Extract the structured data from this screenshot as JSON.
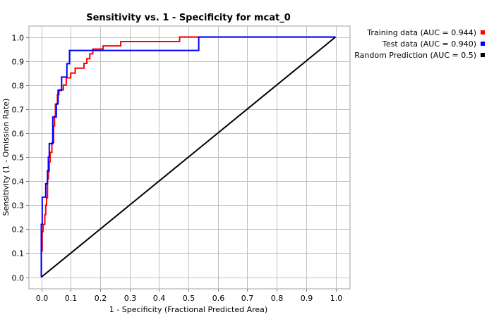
{
  "chart_data": {
    "type": "line",
    "title": "Sensitivity vs. 1 - Specificity for mcat_0",
    "xlabel": "1 - Specificity  (Fractional Predicted Area)",
    "ylabel": "Sensitivity  (1 - Omission Rate)",
    "xlim": [
      0,
      1.0
    ],
    "ylim": [
      0,
      1.0
    ],
    "grid": true,
    "legend_position": "outside-top-right",
    "x_ticks": [
      "0.0",
      "0.1",
      "0.2",
      "0.3",
      "0.4",
      "0.5",
      "0.6",
      "0.7",
      "0.8",
      "0.9",
      "1.0"
    ],
    "y_ticks": [
      "0.0",
      "0.1",
      "0.2",
      "0.3",
      "0.4",
      "0.5",
      "0.6",
      "0.7",
      "0.8",
      "0.9",
      "1.0"
    ],
    "series": [
      {
        "name": "Training data (AUC = 0.944)",
        "color": "#ff0000",
        "points": [
          [
            0.0,
            0.0
          ],
          [
            0.0,
            0.11
          ],
          [
            0.003,
            0.11
          ],
          [
            0.003,
            0.19
          ],
          [
            0.006,
            0.19
          ],
          [
            0.006,
            0.22
          ],
          [
            0.012,
            0.22
          ],
          [
            0.012,
            0.26
          ],
          [
            0.015,
            0.26
          ],
          [
            0.015,
            0.3
          ],
          [
            0.018,
            0.3
          ],
          [
            0.018,
            0.33
          ],
          [
            0.021,
            0.33
          ],
          [
            0.021,
            0.41
          ],
          [
            0.024,
            0.41
          ],
          [
            0.024,
            0.44
          ],
          [
            0.027,
            0.44
          ],
          [
            0.027,
            0.48
          ],
          [
            0.03,
            0.48
          ],
          [
            0.03,
            0.52
          ],
          [
            0.036,
            0.52
          ],
          [
            0.036,
            0.56
          ],
          [
            0.042,
            0.56
          ],
          [
            0.042,
            0.63
          ],
          [
            0.045,
            0.63
          ],
          [
            0.045,
            0.67
          ],
          [
            0.048,
            0.67
          ],
          [
            0.048,
            0.72
          ],
          [
            0.055,
            0.72
          ],
          [
            0.055,
            0.76
          ],
          [
            0.06,
            0.76
          ],
          [
            0.06,
            0.78
          ],
          [
            0.075,
            0.78
          ],
          [
            0.075,
            0.8
          ],
          [
            0.085,
            0.8
          ],
          [
            0.085,
            0.83
          ],
          [
            0.1,
            0.83
          ],
          [
            0.1,
            0.85
          ],
          [
            0.115,
            0.85
          ],
          [
            0.115,
            0.87
          ],
          [
            0.145,
            0.87
          ],
          [
            0.145,
            0.89
          ],
          [
            0.155,
            0.89
          ],
          [
            0.155,
            0.91
          ],
          [
            0.165,
            0.91
          ],
          [
            0.165,
            0.93
          ],
          [
            0.175,
            0.93
          ],
          [
            0.175,
            0.95
          ],
          [
            0.21,
            0.95
          ],
          [
            0.21,
            0.963
          ],
          [
            0.27,
            0.963
          ],
          [
            0.27,
            0.981
          ],
          [
            0.47,
            0.981
          ],
          [
            0.47,
            1.0
          ],
          [
            1.0,
            1.0
          ]
        ]
      },
      {
        "name": "Test data (AUC = 0.940)",
        "color": "#0000ff",
        "points": [
          [
            0.0,
            0.0
          ],
          [
            0.0,
            0.22
          ],
          [
            0.003,
            0.22
          ],
          [
            0.003,
            0.333
          ],
          [
            0.015,
            0.333
          ],
          [
            0.015,
            0.389
          ],
          [
            0.021,
            0.389
          ],
          [
            0.021,
            0.444
          ],
          [
            0.024,
            0.444
          ],
          [
            0.024,
            0.5
          ],
          [
            0.027,
            0.5
          ],
          [
            0.027,
            0.556
          ],
          [
            0.039,
            0.556
          ],
          [
            0.039,
            0.667
          ],
          [
            0.051,
            0.667
          ],
          [
            0.051,
            0.722
          ],
          [
            0.057,
            0.722
          ],
          [
            0.057,
            0.778
          ],
          [
            0.069,
            0.778
          ],
          [
            0.069,
            0.833
          ],
          [
            0.087,
            0.833
          ],
          [
            0.087,
            0.889
          ],
          [
            0.096,
            0.889
          ],
          [
            0.096,
            0.944
          ],
          [
            0.535,
            0.944
          ],
          [
            0.535,
            1.0
          ],
          [
            1.0,
            1.0
          ]
        ]
      },
      {
        "name": "Random Prediction (AUC = 0.5)",
        "color": "#000000",
        "points": [
          [
            0.0,
            0.0
          ],
          [
            1.0,
            1.0
          ]
        ]
      }
    ]
  }
}
